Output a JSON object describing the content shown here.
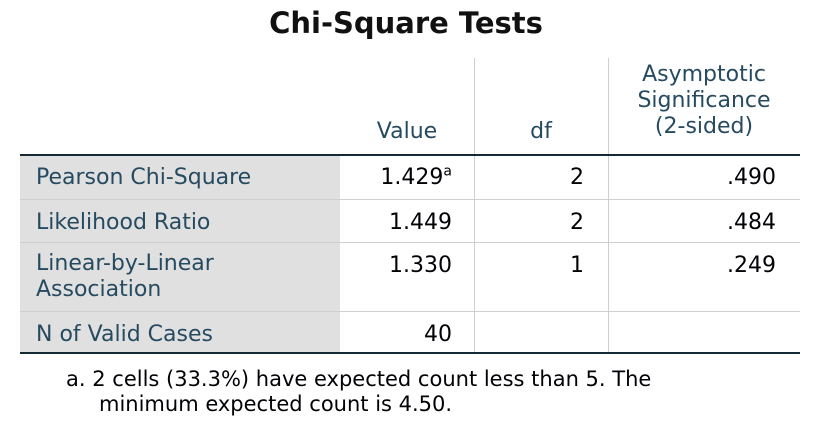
{
  "title": "Chi-Square Tests",
  "headers": {
    "value": "Value",
    "df": "df",
    "sig_line1": "Asymptotic",
    "sig_line2": "Significance",
    "sig_line3": "(2-sided)"
  },
  "rows": [
    {
      "label": "Pearson Chi-Square",
      "value": "1.429",
      "value_note": "a",
      "df": "2",
      "sig": ".490"
    },
    {
      "label": "Likelihood Ratio",
      "value": "1.449",
      "df": "2",
      "sig": ".484"
    },
    {
      "label_line1": "Linear-by-Linear",
      "label_line2": "Association",
      "value": "1.330",
      "df": "1",
      "sig": ".249"
    },
    {
      "label": "N of Valid Cases",
      "value": "40"
    }
  ],
  "footnote": {
    "marker": "a.",
    "line1": "2 cells (33.3%) have expected count less than 5. The",
    "line2": "minimum expected count is 4.50."
  },
  "colors": {
    "label_text": "#264a60",
    "label_background": "#e0e0e0",
    "rule": "#152935",
    "grid": "#cfcfcf"
  }
}
